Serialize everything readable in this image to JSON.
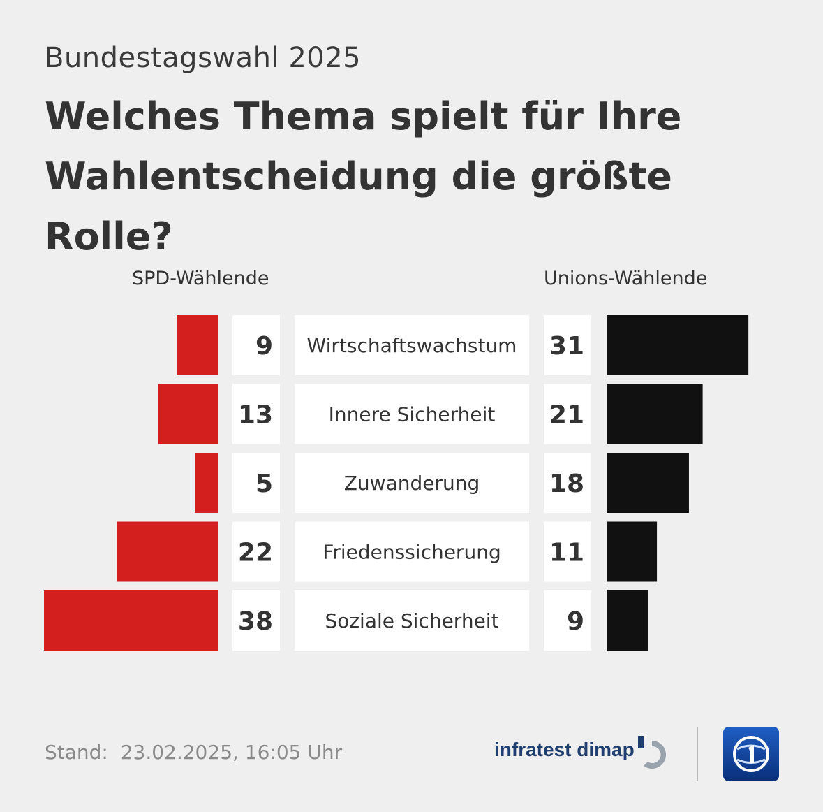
{
  "header": {
    "subtitle": "Bundestagswahl 2025",
    "title": "Welches Thema spielt für Ihre Wahlentscheidung die größte Rolle?"
  },
  "chart_data": {
    "type": "bar",
    "layout": "butterfly",
    "categories": [
      "Wirtschaftswachstum",
      "Innere Sicherheit",
      "Zuwanderung",
      "Friedenssicherung",
      "Soziale Sicherheit"
    ],
    "series": [
      {
        "name": "SPD-Wählende",
        "side": "left",
        "color": "#d41f1f",
        "values": [
          9,
          13,
          5,
          22,
          38
        ]
      },
      {
        "name": "Unions-Wählende",
        "side": "right",
        "color": "#111111",
        "values": [
          31,
          21,
          18,
          11,
          9
        ]
      }
    ],
    "unit": "%",
    "xlim": [
      0,
      38
    ]
  },
  "footer": {
    "stand_label": "Stand:",
    "stand_value": "23.02.2025, 16:05 Uhr",
    "brand_text": "infratest dimap",
    "logo_icon": "tagesschau-logo-icon",
    "brand_icon": "infratest-dimap-logo-icon"
  }
}
